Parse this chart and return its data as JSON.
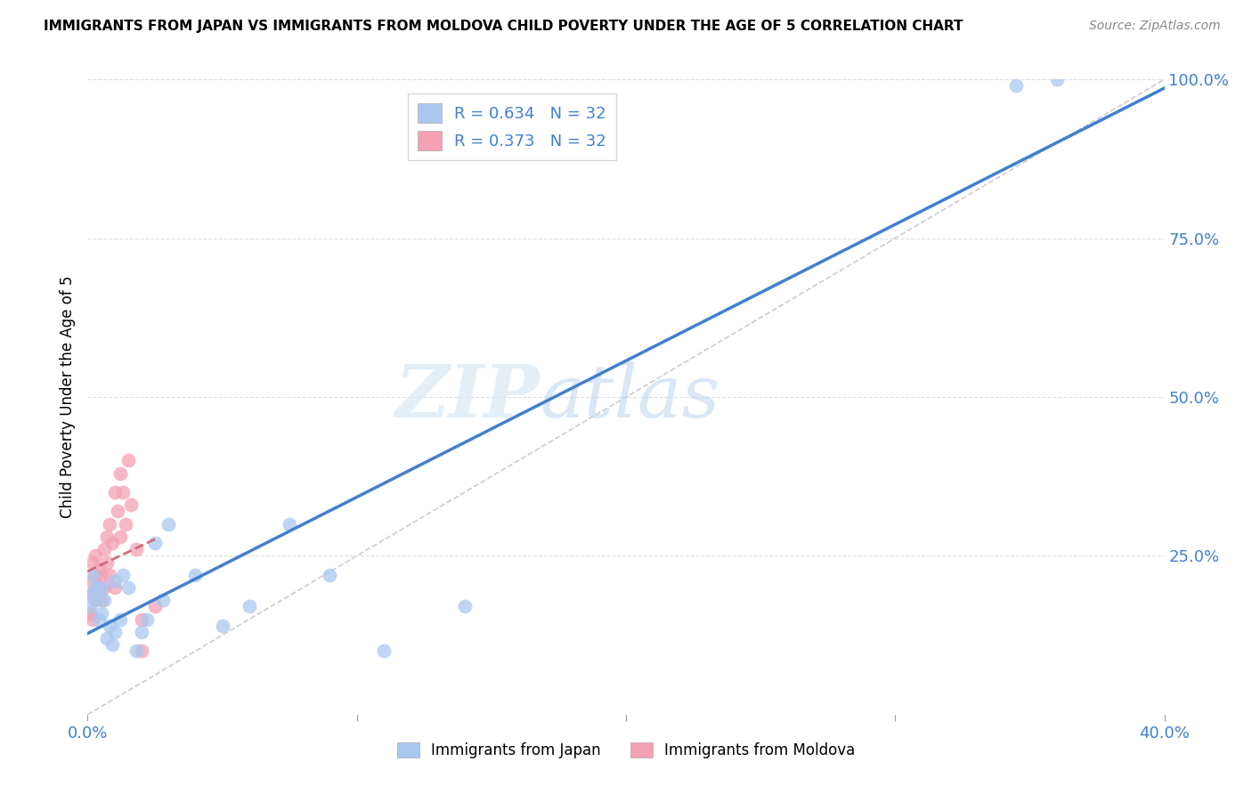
{
  "title": "IMMIGRANTS FROM JAPAN VS IMMIGRANTS FROM MOLDOVA CHILD POVERTY UNDER THE AGE OF 5 CORRELATION CHART",
  "source": "Source: ZipAtlas.com",
  "ylabel": "Child Poverty Under the Age of 5",
  "legend_japan": "Immigrants from Japan",
  "legend_moldova": "Immigrants from Moldova",
  "R_japan": 0.634,
  "R_moldova": 0.373,
  "N_japan": 32,
  "N_moldova": 32,
  "xlim": [
    0.0,
    0.4
  ],
  "ylim": [
    0.0,
    1.0
  ],
  "y_ticks_right": [
    0.0,
    0.25,
    0.5,
    0.75,
    1.0
  ],
  "y_tick_labels_right": [
    "",
    "25.0%",
    "50.0%",
    "75.0%",
    "100.0%"
  ],
  "color_japan": "#a8c8f0",
  "color_moldova": "#f4a0b5",
  "trend_japan": "#4080d0",
  "trend_moldova": "#d06070",
  "watermark_zip": "ZIP",
  "watermark_atlas": "atlas",
  "japan_x": [
    0.001,
    0.002,
    0.002,
    0.003,
    0.003,
    0.004,
    0.005,
    0.005,
    0.006,
    0.007,
    0.008,
    0.009,
    0.01,
    0.01,
    0.012,
    0.013,
    0.015,
    0.018,
    0.02,
    0.022,
    0.025,
    0.028,
    0.03,
    0.04,
    0.05,
    0.06,
    0.075,
    0.09,
    0.11,
    0.14,
    0.345,
    0.36
  ],
  "japan_y": [
    0.17,
    0.19,
    0.22,
    0.2,
    0.18,
    0.15,
    0.16,
    0.2,
    0.18,
    0.12,
    0.14,
    0.11,
    0.13,
    0.21,
    0.15,
    0.22,
    0.2,
    0.1,
    0.13,
    0.15,
    0.27,
    0.18,
    0.3,
    0.22,
    0.14,
    0.17,
    0.3,
    0.22,
    0.1,
    0.17,
    0.99,
    1.0
  ],
  "moldova_x": [
    0.001,
    0.001,
    0.002,
    0.002,
    0.002,
    0.003,
    0.003,
    0.003,
    0.004,
    0.004,
    0.005,
    0.005,
    0.006,
    0.006,
    0.007,
    0.007,
    0.008,
    0.008,
    0.009,
    0.01,
    0.01,
    0.011,
    0.012,
    0.012,
    0.013,
    0.014,
    0.015,
    0.016,
    0.018,
    0.02,
    0.02,
    0.025
  ],
  "moldova_y": [
    0.16,
    0.19,
    0.21,
    0.24,
    0.15,
    0.22,
    0.25,
    0.18,
    0.2,
    0.23,
    0.18,
    0.22,
    0.26,
    0.2,
    0.28,
    0.24,
    0.3,
    0.22,
    0.27,
    0.2,
    0.35,
    0.32,
    0.38,
    0.28,
    0.35,
    0.3,
    0.4,
    0.33,
    0.26,
    0.15,
    0.1,
    0.17
  ]
}
